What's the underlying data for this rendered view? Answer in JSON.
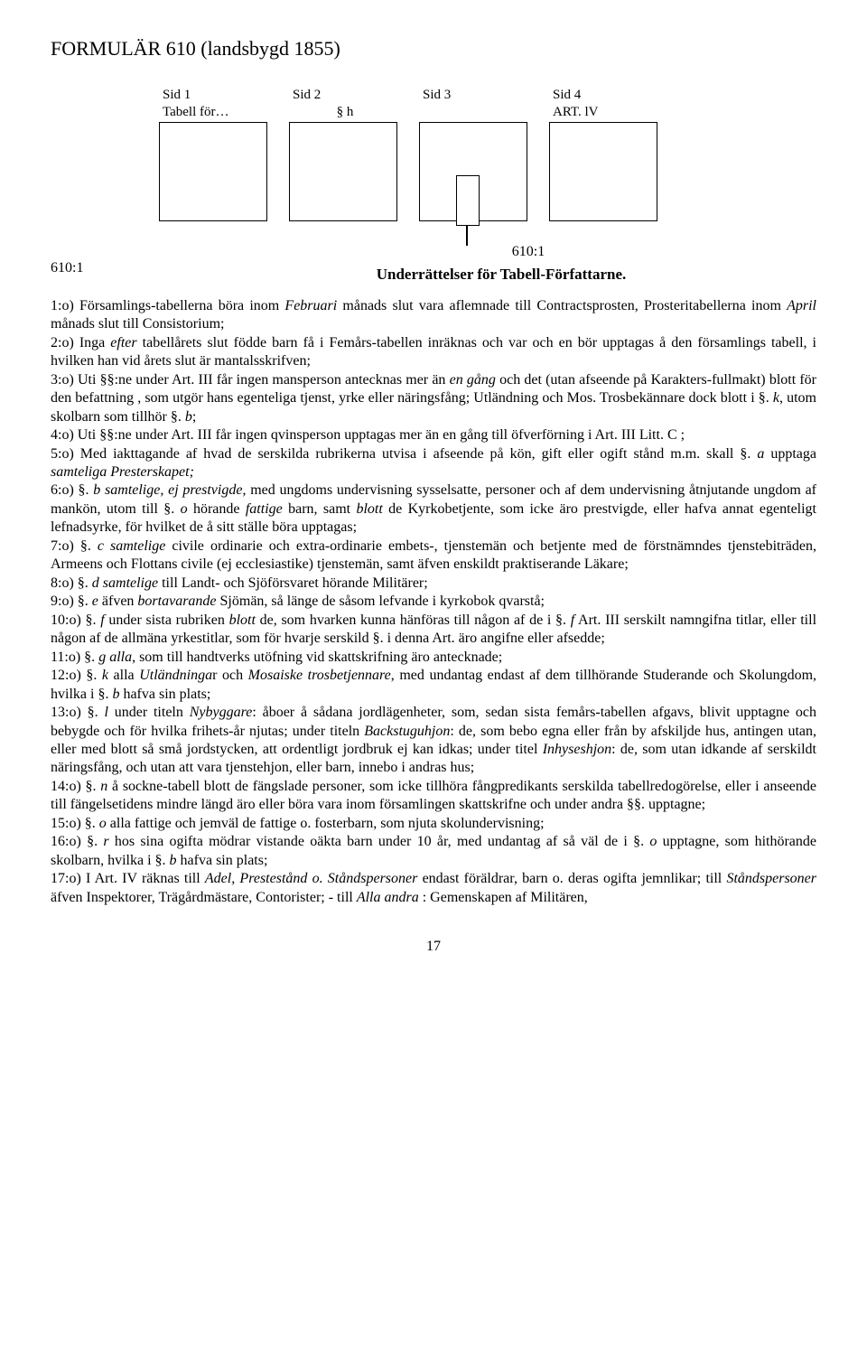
{
  "title": "FORMULÄR 610 (landsbygd 1855)",
  "sids": {
    "s1": "Sid 1",
    "s2": "Sid 2",
    "s3": "Sid 3",
    "s4": "Sid 4"
  },
  "box_labels": {
    "b1": "Tabell  för…",
    "b2": "§ h",
    "b3": "",
    "b4": "ART. lV"
  },
  "ref_left": "610:1",
  "ref_right": "610:1",
  "subtitle": "Underrättelser för Tabell-Författarne.",
  "paras": {
    "p1a": "1:o)  Församlings-tabellerna böra inom ",
    "p1b": "Februari",
    "p1c": " månads slut vara aflemnade till Contractsprosten, Prosteritabellerna inom ",
    "p1d": "April",
    "p1e": " månads slut till Consistorium;",
    "p2a": "2:o)  Inga ",
    "p2b": "efter",
    "p2c": " tabellårets slut födde barn få i Femårs-tabellen inräknas och var och en bör upptagas å den församlings tabell, i hvilken han vid årets slut är mantalsskrifven;",
    "p3a": "3:o)  Uti §§:ne under Art. III får ingen mansperson antecknas mer än ",
    "p3b": "en gång",
    "p3c": " och det  (utan afseende på Karakters-fullmakt) blott för den befattning , som utgör hans  egenteliga tjenst, yrke eller näringsfång; Utländning och Mos. Trosbekännare dock blott i §. ",
    "p3d": "k",
    "p3e": ", utom skolbarn som tillhör §. ",
    "p3f": "b",
    "p3g": ";",
    "p4": "4:o)  Uti §§:ne under Art. III får ingen qvinsperson upptagas mer än en gång till öfverförning i Art. III Litt. C ;",
    "p5a": "5:o)  Med iakttagande af hvad de serskilda rubrikerna utvisa i afseende på kön, gift eller ogift stånd m.m. skall §. ",
    "p5b": "a",
    "p5c": " upptaga ",
    "p5d": "samteliga Presterskapet;",
    "p6a": "6:o)  §. ",
    "p6b": "b samtelige, ej prestvigde",
    "p6c": ", med ungdoms undervisning sysselsatte, personer och af dem undervisning åtnjutande ungdom af mankön, utom till §. ",
    "p6d": "o",
    "p6e": " hörande ",
    "p6f": "fattige",
    "p6g": " barn, samt ",
    "p6h": "blott",
    "p6i": " de Kyrkobetjente, som icke äro prestvigde, eller hafva  annat egenteligt lefnadsyrke, för hvilket de å sitt ställe böra upptagas;",
    "p7a": "7:o)  §. ",
    "p7b": "c samtelige",
    "p7c": " civile ordinarie och extra-ordinarie embets-, tjenstemän och betjente med de förstnämndes tjenstebiträden, Armeens och Flottans civile (ej ecclesiastike) tjenstemän, samt  äfven enskildt praktiserande Läkare;",
    "p8a": "8:o)  §. ",
    "p8b": "d samtelige",
    "p8c": " till Landt- och Sjöförsvaret hörande Militärer;",
    "p9a": "9:o)  §. ",
    "p9b": "e",
    "p9c": " äfven ",
    "p9d": "bortavarande",
    "p9e": " Sjömän, så  länge de såsom lefvande i kyrkobok qvarstå;",
    "p10a": "10:o)  §. ",
    "p10b": "f",
    "p10c": " under sista rubriken ",
    "p10d": "blott",
    "p10e": " de, som hvarken kunna hänföras till någon af  de i §. ",
    "p10f": "f",
    "p10g": " Art. III serskilt namngifna titlar, eller till någon af de allmäna yrkestitlar, som för  hvarje serskild §. i denna Art.  äro angifne eller afsedde;",
    "p11a": "11:o)  §. ",
    "p11b": "g alla",
    "p11c": ", som till handtverks utöfning vid skattskrifning äro antecknade;",
    "p12a": "12:o)  §. ",
    "p12b": "k",
    "p12c": " alla ",
    "p12d": "Utländninga",
    "p12e": "r och ",
    "p12f": "Mosaiske trosbetjennare",
    "p12g": ", med undantag  endast af dem tillhörande Studerande och Skolungdom, hvilka i §. ",
    "p12h": "b",
    "p12i": " hafva sin plats;",
    "p13a": "13:o)  §. ",
    "p13b": "l",
    "p13c": " under titeln ",
    "p13d": "Nybyggare",
    "p13e": ": åboer å sådana jordlägenheter, som, sedan sista femårs-tabellen afgavs, blivit upptagne och bebygde och för hvilka frihets-år njutas; under titeln ",
    "p13f": "Backstuguhjon",
    "p13g": ": de, som bebo egna eller från by afskiljde hus, antingen utan, eller med blott så små jordstycken, att ordentligt jordbruk ej kan idkas; under titel ",
    "p13h": "Inhyseshjon",
    "p13i": ": de, som utan idkande af serskildt näringsfång, och utan att vara tjenstehjon, eller barn, innebo i andras hus;",
    "p14a": "14:o)  §. ",
    "p14b": "n",
    "p14c": "  å  sockne-tabell blott de fängslade personer, som icke tillhöra fångpredikants serskilda tabellredogörelse,  eller i anseende till fängelsetidens mindre längd äro eller böra vara inom församlingen skattskrifne och under andra §§. upptagne;",
    "p15a": "15:o)  §. ",
    "p15b": "o",
    "p15c": " alla fattige och jemväl de fattige o. fosterbarn, som njuta skolundervisning;",
    "p16a": "16:o)  §. ",
    "p16b": "r",
    "p16c": " hos sina ogifta mödrar vistande oäkta barn under 10 år, med undantag af så väl de i §. ",
    "p16d": "o",
    "p16e": "  upptagne, som hithörande skolbarn, hvilka i §. ",
    "p16f": "b",
    "p16g": " hafva sin plats;",
    "p17a": "17:o)  I Art. IV räknas till ",
    "p17b": "Adel, Prestestånd o. Ståndspersoner",
    "p17c": " endast föräldrar, barn o. deras ogifta jemnlikar; till  ",
    "p17d": "Ståndspersoner",
    "p17e": " äfven Inspektorer, Trägårdmästare, Contorister; - till ",
    "p17f": "Alla andra",
    "p17g": " : Gemenskapen af Militären,"
  },
  "page_number": "17"
}
